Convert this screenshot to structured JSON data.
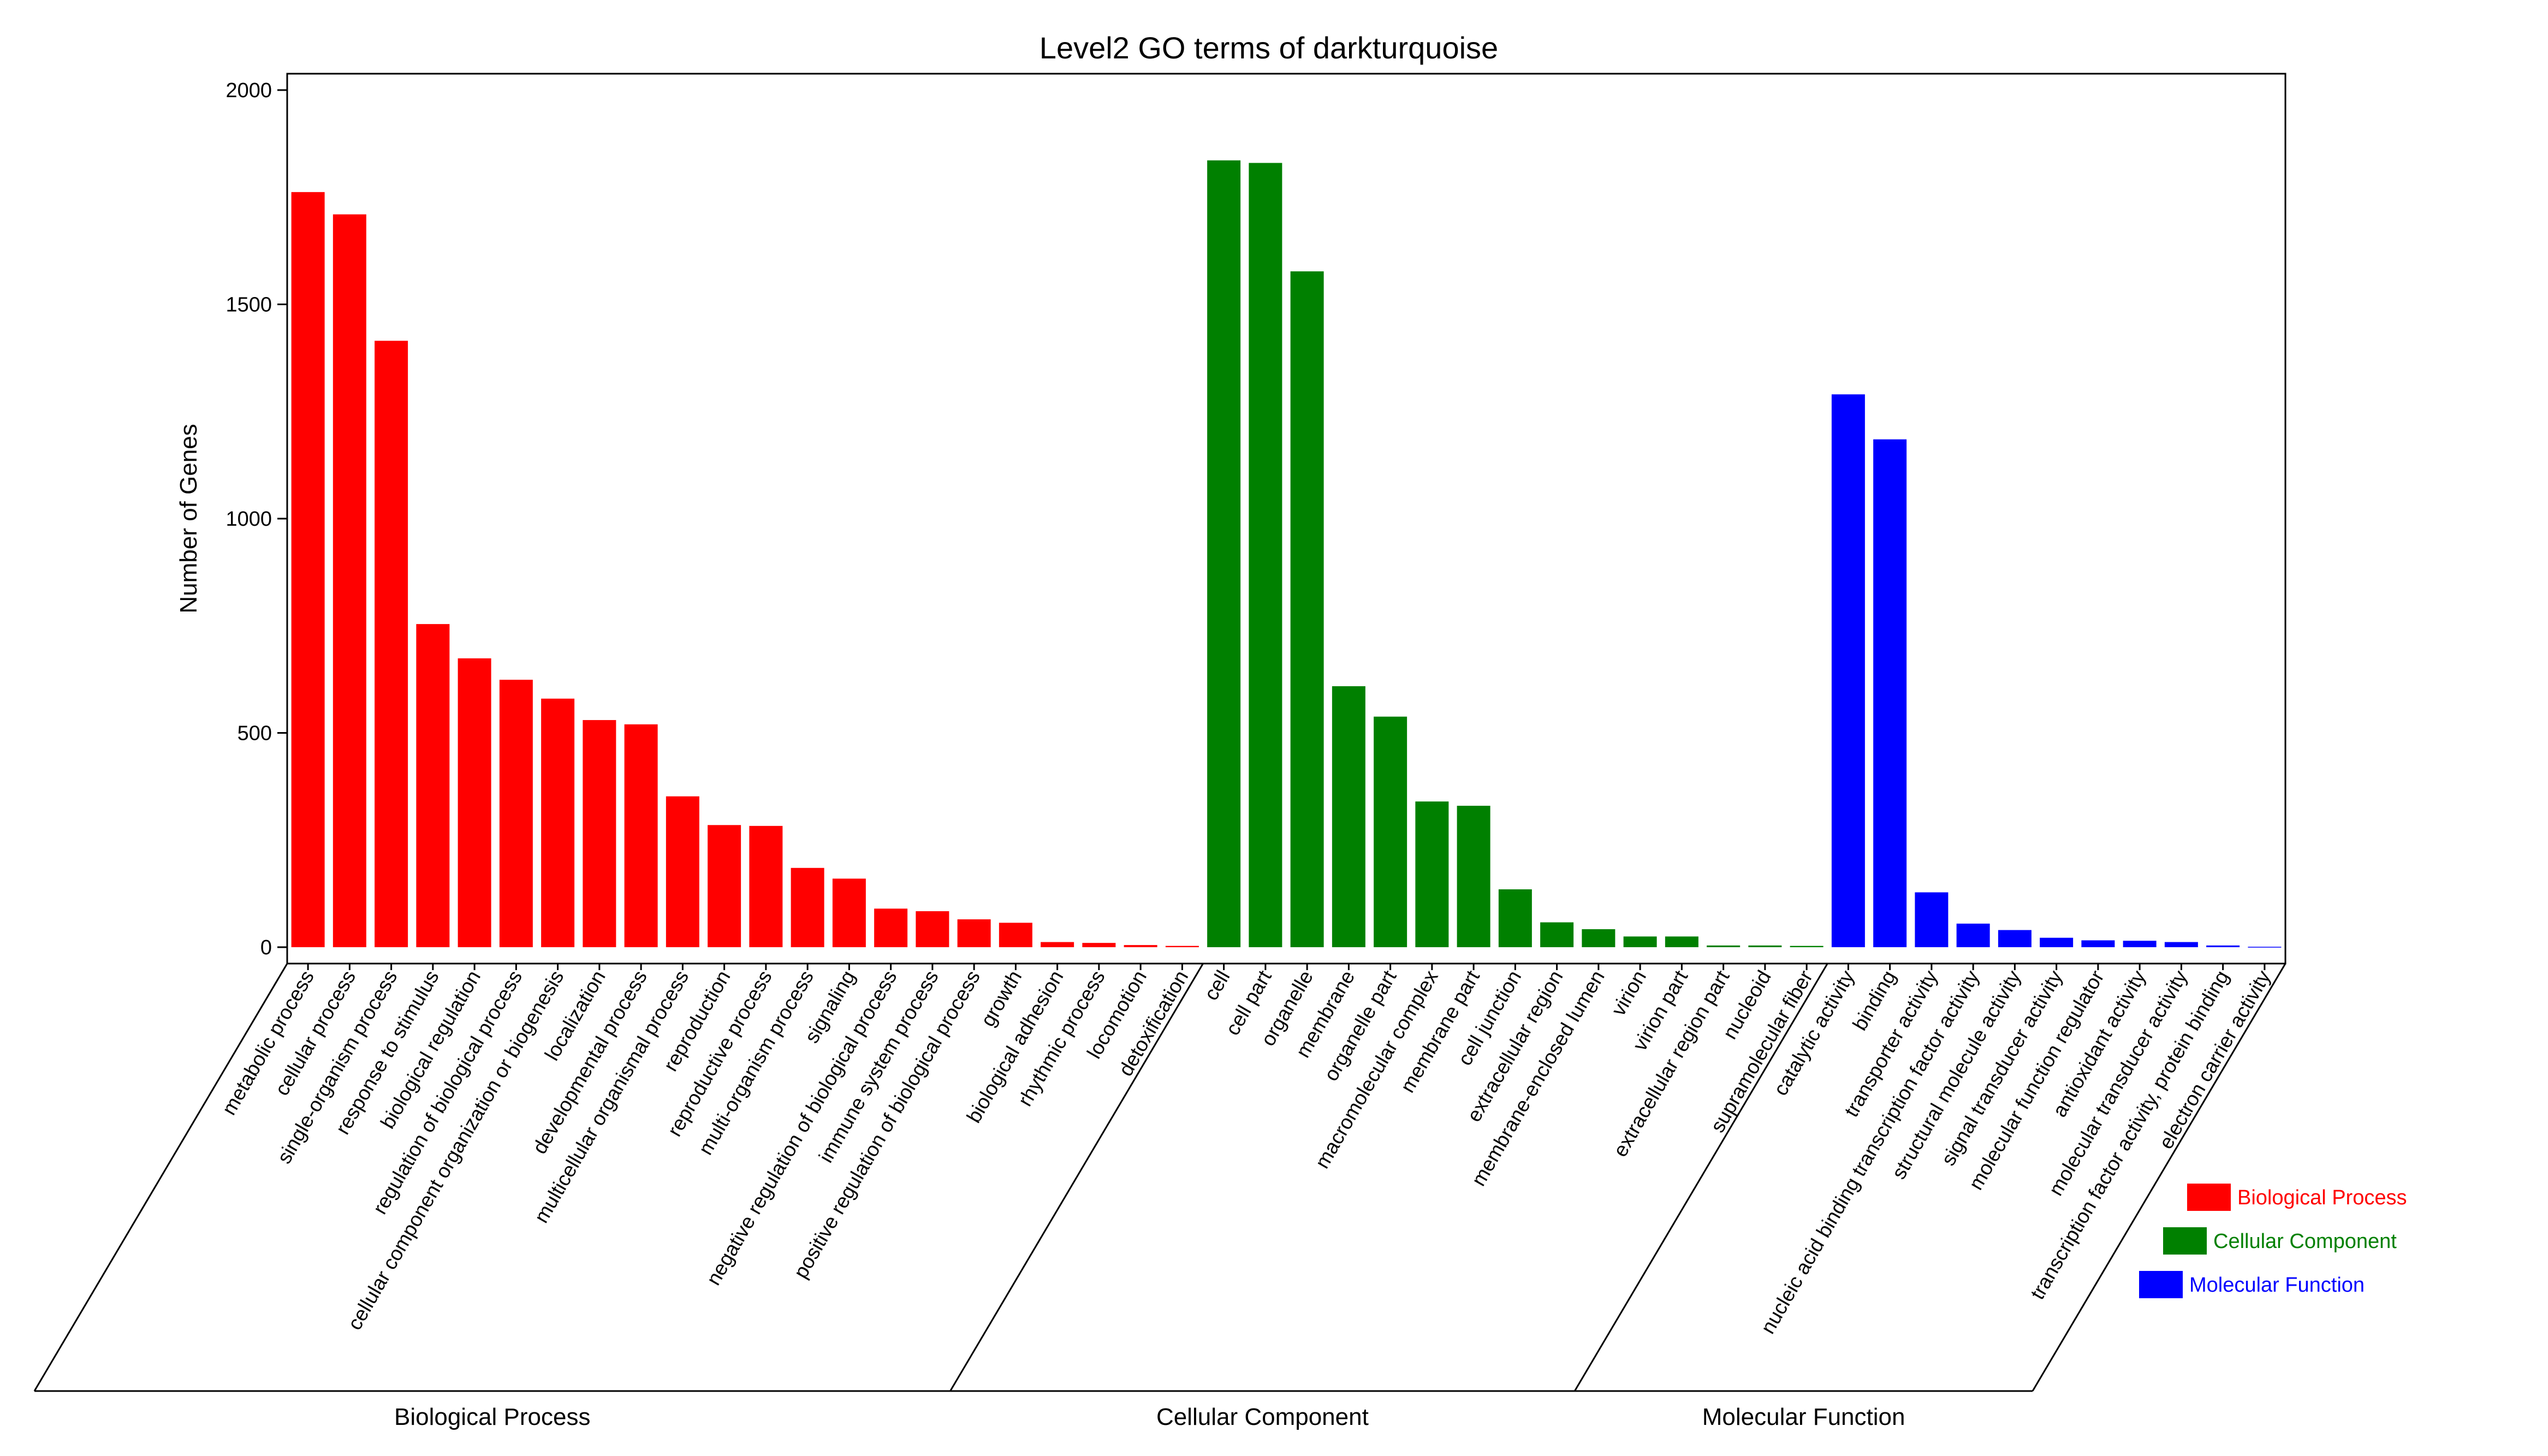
{
  "chart_data": {
    "type": "bar",
    "title": "Level2 GO terms of darkturquoise",
    "ylabel": "Number of Genes",
    "xlabel": "",
    "ylim": [
      0,
      2000
    ],
    "yticks": [
      0,
      500,
      1000,
      1500,
      2000
    ],
    "grid": false,
    "legend_placement": "bottom-right",
    "groups": [
      {
        "name": "Biological Process",
        "color": "#ff0000",
        "categories": [
          "metabolic process",
          "cellular process",
          "single-organism process",
          "response to stimulus",
          "biological regulation",
          "regulation of biological process",
          "cellular component organization or biogenesis",
          "localization",
          "developmental process",
          "multicellular organismal process",
          "reproduction",
          "reproductive process",
          "multi-organism process",
          "signaling",
          "negative regulation of biological process",
          "immune system process",
          "positive regulation of biological process",
          "growth",
          "biological adhesion",
          "rhythmic process",
          "locomotion",
          "detoxification"
        ],
        "values": [
          1762,
          1710,
          1415,
          754,
          674,
          624,
          580,
          530,
          520,
          352,
          285,
          283,
          185,
          160,
          90,
          84,
          65,
          57,
          12,
          10,
          5,
          3
        ]
      },
      {
        "name": "Cellular Component",
        "color": "#008000",
        "categories": [
          "cell",
          "cell part",
          "organelle",
          "membrane",
          "organelle part",
          "macromolecular complex",
          "membrane part",
          "cell junction",
          "extracellular region",
          "membrane-enclosed lumen",
          "virion",
          "virion part",
          "extracellular region part",
          "nucleoid",
          "supramolecular fiber"
        ],
        "values": [
          1836,
          1830,
          1577,
          609,
          538,
          340,
          330,
          135,
          58,
          42,
          25,
          25,
          4,
          4,
          3
        ]
      },
      {
        "name": "Molecular Function",
        "color": "#0000ff",
        "categories": [
          "catalytic activity",
          "binding",
          "transporter activity",
          "nucleic acid binding transcription factor activity",
          "structural molecule activity",
          "signal transducer activity",
          "molecular function regulator",
          "antioxidant activity",
          "molecular transducer activity",
          "transcription factor activity, protein binding",
          "electron carrier activity"
        ],
        "values": [
          1290,
          1185,
          128,
          55,
          40,
          22,
          16,
          15,
          12,
          4,
          1
        ]
      }
    ]
  }
}
